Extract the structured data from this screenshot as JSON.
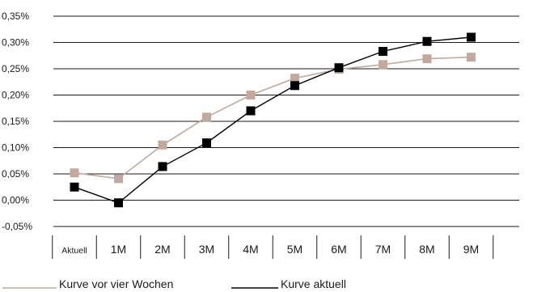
{
  "chart_data": {
    "type": "line",
    "categories": [
      "Aktuell",
      "1M",
      "2M",
      "3M",
      "4M",
      "5M",
      "6M",
      "7M",
      "8M",
      "9M"
    ],
    "series": [
      {
        "name": "Kurve vor vier Wochen",
        "color": "#c3a999",
        "values": [
          0.052,
          0.041,
          0.105,
          0.158,
          0.2,
          0.232,
          0.249,
          0.258,
          0.269,
          0.272
        ]
      },
      {
        "name": "Kurve aktuell",
        "color": "#000000",
        "values": [
          0.025,
          -0.005,
          0.064,
          0.109,
          0.17,
          0.218,
          0.252,
          0.283,
          0.302,
          0.31
        ]
      }
    ],
    "y_ticks": [
      "0,35%",
      "0,30%",
      "0,25%",
      "0,20%",
      "0,15%",
      "0,10%",
      "0,05%",
      "0,00%",
      "-0,05%"
    ],
    "ylim": [
      -0.05,
      0.35
    ],
    "grid": true,
    "legend_position": "bottom"
  }
}
